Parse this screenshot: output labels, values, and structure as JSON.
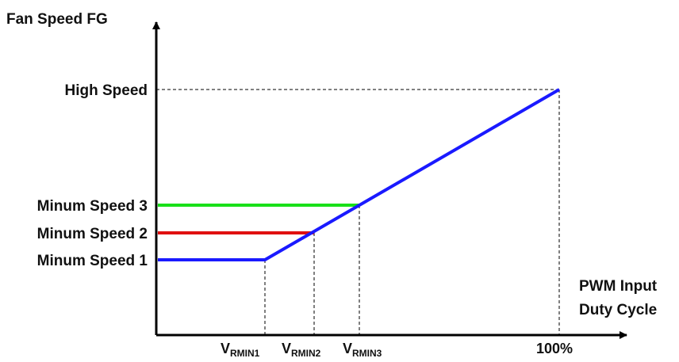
{
  "chart_data": {
    "type": "line",
    "title": "",
    "ylabel": "Fan Speed FG",
    "xlabel_lines": [
      "PWM Input",
      "Duty Cycle"
    ],
    "y_levels": [
      {
        "key": "high",
        "label": "High Speed"
      },
      {
        "key": "min3",
        "label": "Minum Speed 3"
      },
      {
        "key": "min2",
        "label": "Minum Speed 2"
      },
      {
        "key": "min1",
        "label": "Minum Speed 1"
      }
    ],
    "x_ticks": [
      {
        "key": "vrmin1",
        "main": "V",
        "sub": "RMIN1"
      },
      {
        "key": "vrmin2",
        "main": "V",
        "sub": "RMIN2"
      },
      {
        "key": "vrmin3",
        "main": "V",
        "sub": "RMIN3"
      },
      {
        "key": "full",
        "main": "100%",
        "sub": ""
      }
    ],
    "series": [
      {
        "color": "#1a1aff",
        "points": [
          [
            "start",
            "min1"
          ],
          [
            "vrmin1",
            "min1"
          ],
          [
            "full",
            "high"
          ]
        ]
      },
      {
        "color": "#e01010",
        "points": [
          [
            "start",
            "min2"
          ],
          [
            "vrmin2",
            "min2"
          ]
        ]
      },
      {
        "color": "#19e019",
        "points": [
          [
            "start",
            "min3"
          ],
          [
            "vrmin3",
            "min3"
          ]
        ]
      }
    ],
    "grid": false,
    "axis_color": "#000000"
  }
}
